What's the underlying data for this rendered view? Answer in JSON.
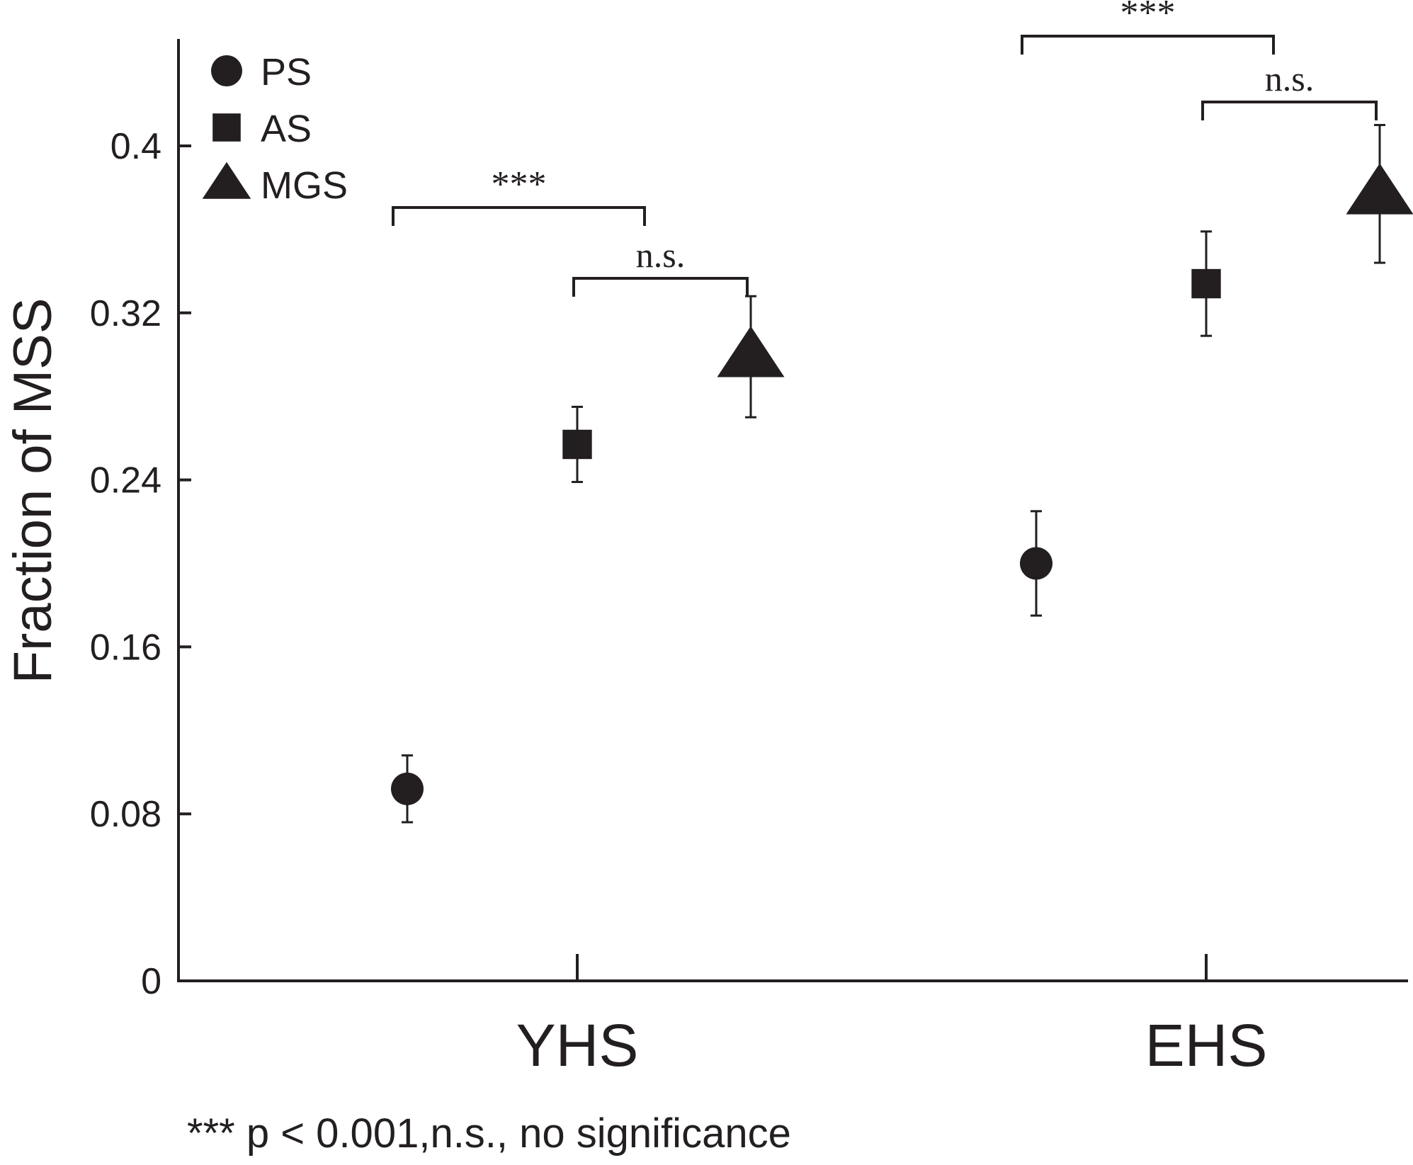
{
  "chart_data": {
    "type": "scatter",
    "title": "",
    "xlabel": "",
    "ylabel": "Fraction of MSS",
    "categories": [
      "YHS",
      "EHS"
    ],
    "ylim": [
      0,
      0.48
    ],
    "yticks": [
      "0",
      "0.08",
      "0.16",
      "0.24",
      "0.32",
      "0.4"
    ],
    "grid": false,
    "legend_position": "top-left",
    "series": [
      {
        "name": "PS",
        "marker": "circle",
        "values": [
          0.092,
          0.2
        ],
        "err_low": [
          0.016,
          0.025
        ],
        "err_high": [
          0.016,
          0.025
        ]
      },
      {
        "name": "AS",
        "marker": "square",
        "values": [
          0.257,
          0.334
        ],
        "err_low": [
          0.018,
          0.025
        ],
        "err_high": [
          0.018,
          0.025
        ]
      },
      {
        "name": "MGS",
        "marker": "triangle",
        "values": [
          0.299,
          0.377
        ],
        "err_low": [
          0.029,
          0.033
        ],
        "err_high": [
          0.029,
          0.033
        ]
      }
    ],
    "significance": [
      {
        "group": "YHS",
        "from": "PS",
        "to": "AS",
        "label": "***"
      },
      {
        "group": "YHS",
        "from": "AS",
        "to": "MGS",
        "label": "n.s."
      },
      {
        "group": "EHS",
        "from": "PS",
        "to": "AS",
        "label": "***"
      },
      {
        "group": "EHS",
        "from": "AS",
        "to": "MGS",
        "label": "n.s."
      }
    ],
    "footnote": "*** p < 0.001,n.s., no significance"
  },
  "colors": {
    "ink": "#231f20",
    "background": "#ffffff"
  }
}
